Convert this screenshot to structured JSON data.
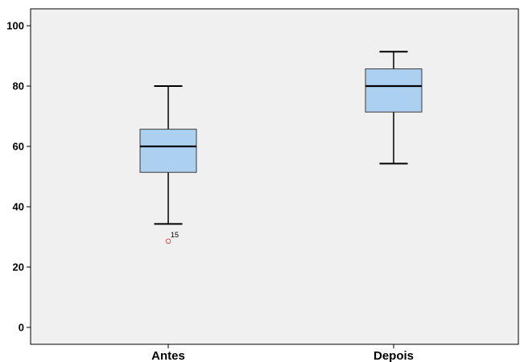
{
  "chart_data": {
    "type": "boxplot",
    "title": "",
    "xlabel": "",
    "ylabel": "",
    "ylim": [
      -6,
      106
    ],
    "yticks": [
      0,
      20,
      40,
      60,
      80,
      100
    ],
    "ytick_labels": [
      "0",
      "20",
      "40",
      "60",
      "80",
      "100"
    ],
    "grid": false,
    "legend": "none",
    "colors": {
      "box_fill": "#acd0ef",
      "box_stroke": "#3a3a3a",
      "plot_bg": "#f0f0f0",
      "outlier": "#e05050"
    },
    "categories": [
      "Antes",
      "Depois"
    ],
    "boxes": [
      {
        "category": "Antes",
        "min": 34.3,
        "q1": 51.4,
        "median": 60.0,
        "q3": 65.7,
        "max": 80.0,
        "outliers": [
          {
            "value": 28.6,
            "label": "15"
          }
        ]
      },
      {
        "category": "Depois",
        "min": 54.3,
        "q1": 71.4,
        "median": 80.0,
        "q3": 85.7,
        "max": 91.4,
        "outliers": []
      }
    ]
  }
}
